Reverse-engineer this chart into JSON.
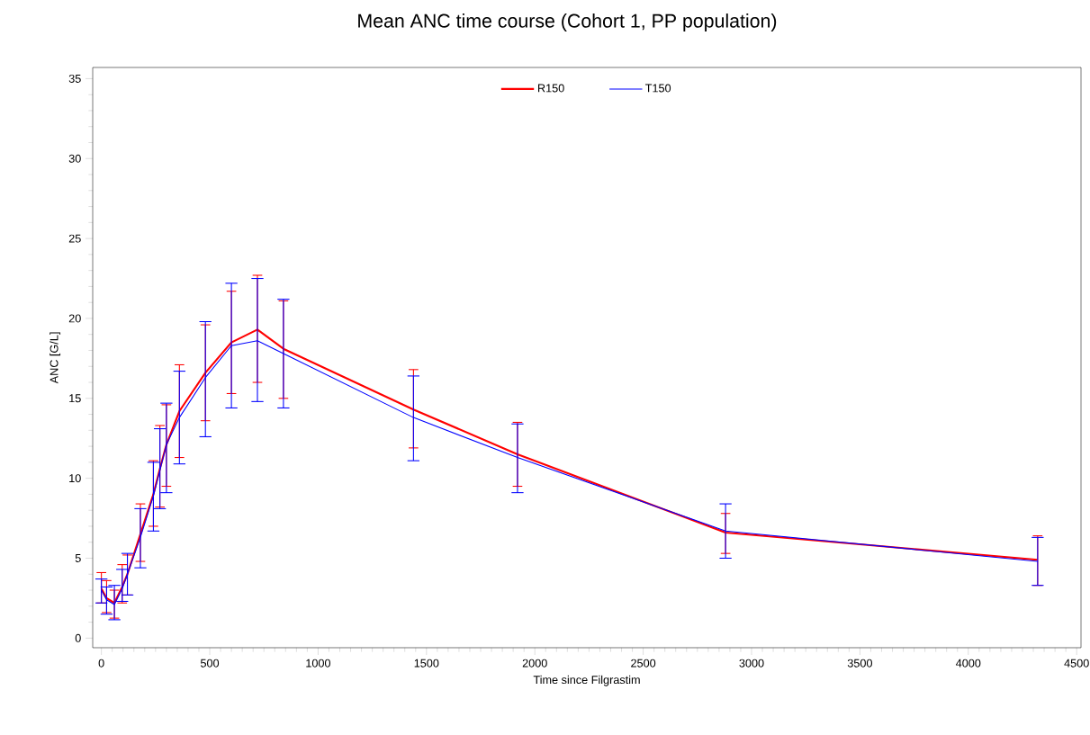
{
  "chart_data": {
    "type": "line",
    "title": "Mean ANC time course (Cohort 1, PP population)",
    "xlabel": "Time since Filgrastim",
    "ylabel": "ANC [G/L]",
    "x": [
      0,
      24,
      60,
      96,
      120,
      180,
      240,
      270,
      300,
      360,
      480,
      600,
      720,
      840,
      1440,
      1920,
      2880,
      4320
    ],
    "series": [
      {
        "name": "R150",
        "color": "#ff0000",
        "values": [
          3.1,
          2.5,
          2.2,
          3.2,
          4.0,
          6.5,
          9.0,
          10.6,
          12.1,
          14.2,
          16.6,
          18.5,
          19.3,
          18.1,
          14.3,
          11.5,
          6.6,
          4.9
        ],
        "errors": [
          [
            2.2,
            4.1
          ],
          [
            1.6,
            3.6
          ],
          [
            1.25,
            3.0
          ],
          [
            2.2,
            4.6
          ],
          [
            2.7,
            5.2
          ],
          [
            4.8,
            8.4
          ],
          [
            7.0,
            11.1
          ],
          [
            8.2,
            13.3
          ],
          [
            9.5,
            14.6
          ],
          [
            11.3,
            17.1
          ],
          [
            13.6,
            19.6
          ],
          [
            15.3,
            21.7
          ],
          [
            16.0,
            22.7
          ],
          [
            15.0,
            21.1
          ],
          [
            11.9,
            16.8
          ],
          [
            9.5,
            13.5
          ],
          [
            5.3,
            7.8
          ],
          [
            3.3,
            6.4
          ]
        ]
      },
      {
        "name": "T150",
        "color": "#0000ff",
        "values": [
          3.0,
          2.4,
          2.1,
          3.1,
          4.0,
          6.3,
          8.9,
          10.5,
          12.1,
          13.8,
          16.3,
          18.3,
          18.6,
          17.8,
          13.8,
          11.3,
          6.7,
          4.8
        ],
        "errors": [
          [
            2.2,
            3.7
          ],
          [
            1.5,
            3.2
          ],
          [
            1.15,
            3.3
          ],
          [
            2.3,
            4.3
          ],
          [
            2.7,
            5.3
          ],
          [
            4.4,
            8.1
          ],
          [
            6.7,
            11.0
          ],
          [
            8.1,
            13.1
          ],
          [
            9.1,
            14.7
          ],
          [
            10.9,
            16.7
          ],
          [
            12.6,
            19.8
          ],
          [
            14.4,
            22.2
          ],
          [
            14.8,
            22.5
          ],
          [
            14.4,
            21.2
          ],
          [
            11.1,
            16.4
          ],
          [
            9.1,
            13.4
          ],
          [
            5.0,
            8.4
          ],
          [
            3.3,
            6.3
          ]
        ]
      }
    ],
    "xlim": [
      -40,
      4520
    ],
    "xticks": [
      0,
      500,
      1000,
      1500,
      2000,
      2500,
      3000,
      3500,
      4000,
      4500
    ],
    "ylim": [
      -0.6,
      35.7
    ],
    "yticks": [
      0,
      5,
      10,
      15,
      20,
      25,
      30,
      35
    ],
    "legend": "top"
  }
}
